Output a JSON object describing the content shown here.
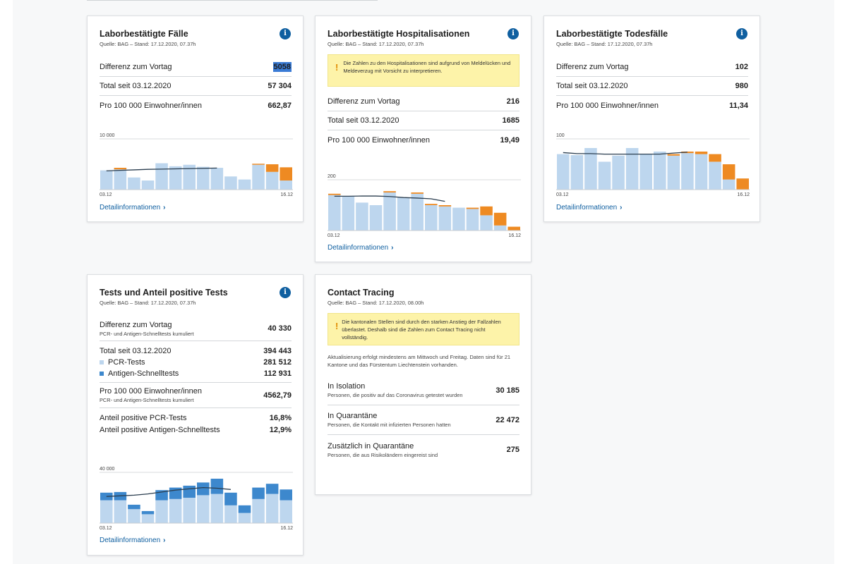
{
  "colors": {
    "light_bar": "#bdd6ee",
    "orange_bar": "#ee8a22",
    "dark_bar": "#3d88cd",
    "line": "#2a3d4f",
    "link": "#0f5fa0"
  },
  "cards": {
    "faelle": {
      "title": "Laborbestätigte Fälle",
      "source": "Quelle: BAG – Stand: 17.12.2020, 07.37h",
      "rows": [
        {
          "label": "Differenz zum Vortag",
          "value": "5058"
        },
        {
          "label": "Total seit 03.12.2020",
          "value": "57 304"
        },
        {
          "label": "Pro 100 000 Einwohner/innen",
          "value": "662,87"
        }
      ],
      "detail": "Detailinformationen"
    },
    "hosp": {
      "title": "Laborbestätigte Hospitalisationen",
      "source": "Quelle: BAG – Stand: 17.12.2020, 07.37h",
      "warning": "Die Zahlen zu den Hospitalisationen sind aufgrund von Meldelücken und Meldeverzug mit Vorsicht zu interpretieren.",
      "rows": [
        {
          "label": "Differenz zum Vortag",
          "value": "216"
        },
        {
          "label": "Total seit 03.12.2020",
          "value": "1685"
        },
        {
          "label": "Pro 100 000 Einwohner/innen",
          "value": "19,49"
        }
      ],
      "detail": "Detailinformationen"
    },
    "tod": {
      "title": "Laborbestätigte Todesfälle",
      "source": "Quelle: BAG – Stand: 17.12.2020, 07.37h",
      "rows": [
        {
          "label": "Differenz zum Vortag",
          "value": "102"
        },
        {
          "label": "Total seit 03.12.2020",
          "value": "980"
        },
        {
          "label": "Pro 100 000 Einwohner/innen",
          "value": "11,34"
        }
      ],
      "detail": "Detailinformationen"
    },
    "tests": {
      "title": "Tests und Anteil positive Tests",
      "source": "Quelle: BAG – Stand: 17.12.2020, 07.37h",
      "diff_label": "Differenz zum Vortag",
      "diff_sub": "PCR- und Antigen-Schnelltests kumuliert",
      "diff_value": "40 330",
      "total_label": "Total seit 03.12.2020",
      "total_value": "394 443",
      "pcr_label": "PCR-Tests",
      "pcr_value": "281 512",
      "antigen_label": "Antigen-Schnelltests",
      "antigen_value": "112 931",
      "pro_label": "Pro 100 000 Einwohner/innen",
      "pro_sub": "PCR- und Antigen-Schnelltests kumuliert",
      "pro_value": "4562,79",
      "pos_pcr_label": "Anteil positive PCR-Tests",
      "pos_pcr_value": "16,8%",
      "pos_ag_label": "Anteil positive Antigen-Schnelltests",
      "pos_ag_value": "12,9%",
      "detail": "Detailinformationen"
    },
    "contact": {
      "title": "Contact Tracing",
      "source": "Quelle: BAG – Stand: 17.12.2020, 08.00h",
      "warning": "Die kantonalen Stellen sind durch den starken Anstieg der Fallzahlen überlastet. Deshalb sind die Zahlen zum Contact Tracing nicht vollständig.",
      "note": "Aktualisierung erfolgt mindestens am Mittwoch und Freitag. Daten sind für 21 Kantone und das Fürstentum Liechtenstein vorhanden.",
      "rows": [
        {
          "label": "In Isolation",
          "sub": "Personen, die positiv auf das Coronavirus getestet wurden",
          "value": "30 185"
        },
        {
          "label": "In Quarantäne",
          "sub": "Personen, die Kontakt mit infizierten Personen hatten",
          "value": "22 472"
        },
        {
          "label": "Zusätzlich in Quarantäne",
          "sub": "Personen, die aus Risikoländern eingereist sind",
          "value": "275"
        }
      ]
    }
  },
  "chart_data": [
    {
      "type": "bar",
      "id": "faelle",
      "ytick": "10 000",
      "ymax": 10000,
      "x_start": "03.12",
      "x_end": "16.12",
      "base": [
        3800,
        4000,
        2400,
        1800,
        5200,
        4600,
        4900,
        4500,
        4300,
        2600,
        2000,
        4900,
        3500,
        1800
      ],
      "incomplete": [
        0,
        300,
        0,
        0,
        0,
        0,
        0,
        0,
        0,
        0,
        0,
        200,
        1500,
        2600
      ],
      "avg": [
        3700,
        3800,
        3900,
        4000,
        4050,
        4100,
        4150,
        4200,
        4250
      ]
    },
    {
      "type": "bar",
      "id": "hosp",
      "ytick": "200",
      "ymax": 200,
      "x_start": "03.12",
      "x_end": "16.12",
      "base": [
        140,
        135,
        110,
        100,
        150,
        130,
        145,
        100,
        95,
        90,
        85,
        60,
        20,
        0
      ],
      "incomplete": [
        5,
        0,
        0,
        0,
        5,
        0,
        5,
        5,
        5,
        0,
        5,
        35,
        50,
        15
      ],
      "avg": [
        135,
        135,
        136,
        136,
        134,
        130,
        128,
        125,
        115
      ]
    },
    {
      "type": "bar",
      "id": "tod",
      "ytick": "100",
      "ymax": 100,
      "x_start": "03.12",
      "x_end": "16.12",
      "base": [
        70,
        68,
        82,
        55,
        67,
        82,
        70,
        75,
        67,
        72,
        70,
        55,
        20,
        0
      ],
      "incomplete": [
        0,
        0,
        0,
        0,
        0,
        0,
        0,
        0,
        3,
        3,
        5,
        15,
        30,
        22
      ],
      "avg": [
        73,
        71,
        71,
        70,
        70,
        70,
        70,
        70,
        72,
        74
      ]
    },
    {
      "type": "bar",
      "id": "tests",
      "ytick": "40 000",
      "ymax": 40000,
      "x_start": "03.12",
      "x_end": "16.12",
      "pcr": [
        18000,
        18000,
        11000,
        7000,
        18000,
        19000,
        20000,
        22000,
        23000,
        14000,
        8000,
        19000,
        23000,
        18000
      ],
      "antigen": [
        6000,
        6500,
        3500,
        2500,
        8000,
        9000,
        9500,
        10000,
        12000,
        10000,
        6000,
        9000,
        8000,
        8500
      ],
      "avg": [
        21000,
        21500,
        22000,
        23000,
        24500,
        26000,
        27000,
        28000,
        27500,
        26500
      ]
    }
  ]
}
